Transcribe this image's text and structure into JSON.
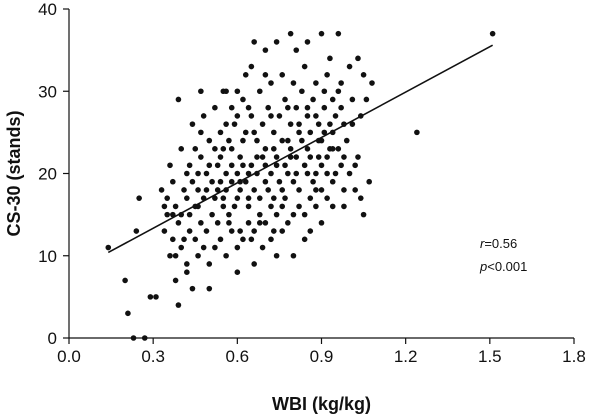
{
  "chart_data": {
    "type": "scatter",
    "title": "",
    "xlabel": "WBI (kg/kg)",
    "ylabel": "CS-30 (stands)",
    "xlim": [
      0.0,
      1.8
    ],
    "ylim": [
      0,
      40
    ],
    "x_ticks": [
      "0.0",
      "0.3",
      "0.6",
      "0.9",
      "1.2",
      "1.5",
      "1.8"
    ],
    "y_ticks": [
      "0",
      "10",
      "20",
      "30",
      "40"
    ],
    "grid": false,
    "legend": "none",
    "point_color": "#111111",
    "annotation": {
      "r_symbol": "r",
      "r_value": "=0.56",
      "p_symbol": "p",
      "p_value": "<0.001"
    },
    "trendline": {
      "x": [
        0.14,
        1.51
      ],
      "y": [
        10.4,
        35.6
      ]
    },
    "points": [
      [
        0.21,
        3
      ],
      [
        0.23,
        0
      ],
      [
        0.27,
        0
      ],
      [
        0.2,
        7
      ],
      [
        0.24,
        13
      ],
      [
        0.29,
        5
      ],
      [
        0.31,
        5
      ],
      [
        0.25,
        17
      ],
      [
        0.14,
        11
      ],
      [
        0.34,
        13
      ],
      [
        0.36,
        10
      ],
      [
        0.38,
        7
      ],
      [
        0.37,
        15
      ],
      [
        0.39,
        4
      ],
      [
        0.42,
        8
      ],
      [
        0.44,
        6
      ],
      [
        0.5,
        6
      ],
      [
        0.41,
        18
      ],
      [
        0.43,
        21
      ],
      [
        0.45,
        23
      ],
      [
        0.47,
        25
      ],
      [
        0.39,
        29
      ],
      [
        0.55,
        30
      ],
      [
        0.56,
        30
      ],
      [
        0.6,
        30
      ],
      [
        0.63,
        32
      ],
      [
        0.65,
        33
      ],
      [
        0.7,
        35
      ],
      [
        0.74,
        36
      ],
      [
        0.79,
        37
      ],
      [
        0.81,
        35
      ],
      [
        0.85,
        36
      ],
      [
        0.9,
        37
      ],
      [
        0.93,
        34
      ],
      [
        0.96,
        37
      ],
      [
        1.03,
        34
      ],
      [
        1.0,
        33
      ],
      [
        1.05,
        32
      ],
      [
        1.08,
        31
      ],
      [
        1.06,
        29
      ],
      [
        1.24,
        25
      ],
      [
        1.51,
        37
      ],
      [
        0.35,
        17
      ],
      [
        0.37,
        19
      ],
      [
        0.39,
        14
      ],
      [
        0.41,
        12
      ],
      [
        0.43,
        15
      ],
      [
        0.45,
        16
      ],
      [
        0.47,
        14
      ],
      [
        0.49,
        13
      ],
      [
        0.51,
        15
      ],
      [
        0.53,
        18
      ],
      [
        0.55,
        17
      ],
      [
        0.57,
        14
      ],
      [
        0.59,
        16
      ],
      [
        0.61,
        18
      ],
      [
        0.63,
        19
      ],
      [
        0.65,
        21
      ],
      [
        0.67,
        20
      ],
      [
        0.69,
        22
      ],
      [
        0.71,
        18
      ],
      [
        0.73,
        17
      ],
      [
        0.75,
        19
      ],
      [
        0.77,
        21
      ],
      [
        0.79,
        23
      ],
      [
        0.81,
        22
      ],
      [
        0.83,
        24
      ],
      [
        0.85,
        20
      ],
      [
        0.87,
        19
      ],
      [
        0.89,
        22
      ],
      [
        0.91,
        25
      ],
      [
        0.93,
        23
      ],
      [
        0.95,
        20
      ],
      [
        0.97,
        21
      ],
      [
        0.99,
        24
      ],
      [
        1.01,
        26
      ],
      [
        1.03,
        22
      ],
      [
        1.05,
        15
      ],
      [
        1.07,
        19
      ],
      [
        0.47,
        22
      ],
      [
        0.49,
        20
      ],
      [
        0.51,
        19
      ],
      [
        0.53,
        21
      ],
      [
        0.55,
        23
      ],
      [
        0.57,
        24
      ],
      [
        0.59,
        26
      ],
      [
        0.61,
        22
      ],
      [
        0.63,
        25
      ],
      [
        0.65,
        27
      ],
      [
        0.67,
        24
      ],
      [
        0.69,
        26
      ],
      [
        0.71,
        28
      ],
      [
        0.73,
        25
      ],
      [
        0.75,
        27
      ],
      [
        0.77,
        29
      ],
      [
        0.79,
        26
      ],
      [
        0.81,
        28
      ],
      [
        0.83,
        30
      ],
      [
        0.85,
        27
      ],
      [
        0.87,
        29
      ],
      [
        0.89,
        26
      ],
      [
        0.91,
        28
      ],
      [
        0.95,
        27
      ],
      [
        0.52,
        11
      ],
      [
        0.54,
        12
      ],
      [
        0.56,
        10
      ],
      [
        0.58,
        13
      ],
      [
        0.6,
        11
      ],
      [
        0.62,
        12
      ],
      [
        0.64,
        14
      ],
      [
        0.66,
        13
      ],
      [
        0.68,
        15
      ],
      [
        0.7,
        14
      ],
      [
        0.72,
        12
      ],
      [
        0.74,
        15
      ],
      [
        0.76,
        16
      ],
      [
        0.78,
        14
      ],
      [
        0.8,
        10
      ],
      [
        0.82,
        16
      ],
      [
        0.84,
        15
      ],
      [
        0.86,
        17
      ],
      [
        0.88,
        16
      ],
      [
        0.9,
        18
      ],
      [
        0.92,
        17
      ],
      [
        0.94,
        19
      ],
      [
        0.42,
        20
      ],
      [
        0.44,
        19
      ],
      [
        0.46,
        18
      ],
      [
        0.48,
        17
      ],
      [
        0.5,
        21
      ],
      [
        0.52,
        23
      ],
      [
        0.54,
        22
      ],
      [
        0.56,
        20
      ],
      [
        0.58,
        19
      ],
      [
        0.6,
        20
      ],
      [
        0.62,
        21
      ],
      [
        0.64,
        17
      ],
      [
        0.66,
        18
      ],
      [
        0.68,
        17
      ],
      [
        0.7,
        19
      ],
      [
        0.72,
        20
      ],
      [
        0.74,
        21
      ],
      [
        0.76,
        18
      ],
      [
        0.78,
        20
      ],
      [
        0.8,
        19
      ],
      [
        0.82,
        18
      ],
      [
        0.84,
        21
      ],
      [
        0.86,
        22
      ],
      [
        0.88,
        20
      ],
      [
        0.9,
        21
      ],
      [
        0.92,
        22
      ],
      [
        0.94,
        25
      ],
      [
        0.96,
        23
      ],
      [
        0.98,
        22
      ],
      [
        1.0,
        20
      ],
      [
        1.02,
        18
      ],
      [
        0.33,
        18
      ],
      [
        0.35,
        15
      ],
      [
        0.37,
        12
      ],
      [
        0.4,
        11
      ],
      [
        0.46,
        10
      ],
      [
        0.5,
        9
      ],
      [
        0.36,
        21
      ],
      [
        0.4,
        23
      ],
      [
        0.44,
        26
      ],
      [
        0.48,
        27
      ],
      [
        0.52,
        28
      ],
      [
        0.58,
        28
      ],
      [
        0.62,
        29
      ],
      [
        0.68,
        30
      ],
      [
        0.72,
        31
      ],
      [
        0.76,
        32
      ],
      [
        0.8,
        31
      ],
      [
        0.84,
        33
      ],
      [
        0.88,
        31
      ],
      [
        0.92,
        32
      ],
      [
        0.96,
        30
      ],
      [
        0.86,
        13
      ],
      [
        0.9,
        14
      ],
      [
        0.94,
        16
      ],
      [
        0.98,
        18
      ],
      [
        1.02,
        21
      ],
      [
        0.34,
        16
      ],
      [
        0.38,
        16
      ],
      [
        0.42,
        17
      ],
      [
        0.46,
        20
      ],
      [
        0.5,
        24
      ],
      [
        0.54,
        25
      ],
      [
        0.58,
        23
      ],
      [
        0.62,
        24
      ],
      [
        0.66,
        25
      ],
      [
        0.7,
        23
      ],
      [
        0.74,
        22
      ],
      [
        0.78,
        24
      ],
      [
        0.82,
        26
      ],
      [
        0.86,
        25
      ],
      [
        0.9,
        24
      ],
      [
        0.94,
        23
      ],
      [
        0.98,
        26
      ],
      [
        0.54,
        19
      ],
      [
        0.56,
        18
      ],
      [
        0.6,
        17
      ],
      [
        0.64,
        16
      ],
      [
        0.68,
        14
      ],
      [
        0.72,
        16
      ],
      [
        0.76,
        13
      ],
      [
        0.8,
        15
      ],
      [
        0.84,
        12
      ],
      [
        0.88,
        18
      ],
      [
        0.92,
        20
      ],
      [
        0.45,
        12
      ],
      [
        0.48,
        11
      ],
      [
        0.53,
        14
      ],
      [
        0.57,
        15
      ],
      [
        0.61,
        13
      ],
      [
        0.65,
        12
      ],
      [
        0.69,
        11
      ],
      [
        0.73,
        13
      ],
      [
        0.77,
        17
      ],
      [
        0.81,
        20
      ],
      [
        0.85,
        23
      ],
      [
        0.89,
        24
      ],
      [
        0.93,
        26
      ],
      [
        0.97,
        28
      ],
      [
        1.01,
        29
      ],
      [
        1.04,
        27
      ],
      [
        0.4,
        15
      ],
      [
        0.43,
        13
      ],
      [
        0.46,
        16
      ],
      [
        0.49,
        18
      ],
      [
        0.52,
        17
      ],
      [
        0.55,
        16
      ],
      [
        0.58,
        21
      ],
      [
        0.61,
        19
      ],
      [
        0.64,
        20
      ],
      [
        0.67,
        22
      ],
      [
        0.7,
        21
      ],
      [
        0.73,
        23
      ],
      [
        0.76,
        24
      ],
      [
        0.79,
        22
      ],
      [
        0.82,
        25
      ],
      [
        0.85,
        28
      ],
      [
        0.88,
        27
      ],
      [
        0.91,
        30
      ],
      [
        0.94,
        29
      ],
      [
        0.97,
        31
      ],
      [
        0.6,
        8
      ],
      [
        0.66,
        9
      ],
      [
        0.74,
        10
      ],
      [
        0.42,
        9
      ],
      [
        0.38,
        10
      ],
      [
        0.47,
        30
      ],
      [
        0.6,
        27
      ],
      [
        0.56,
        26
      ],
      [
        0.64,
        28
      ],
      [
        0.72,
        27
      ],
      [
        0.78,
        28
      ],
      [
        0.7,
        32
      ],
      [
        0.66,
        36
      ],
      [
        0.98,
        16
      ],
      [
        1.04,
        17
      ]
    ]
  }
}
